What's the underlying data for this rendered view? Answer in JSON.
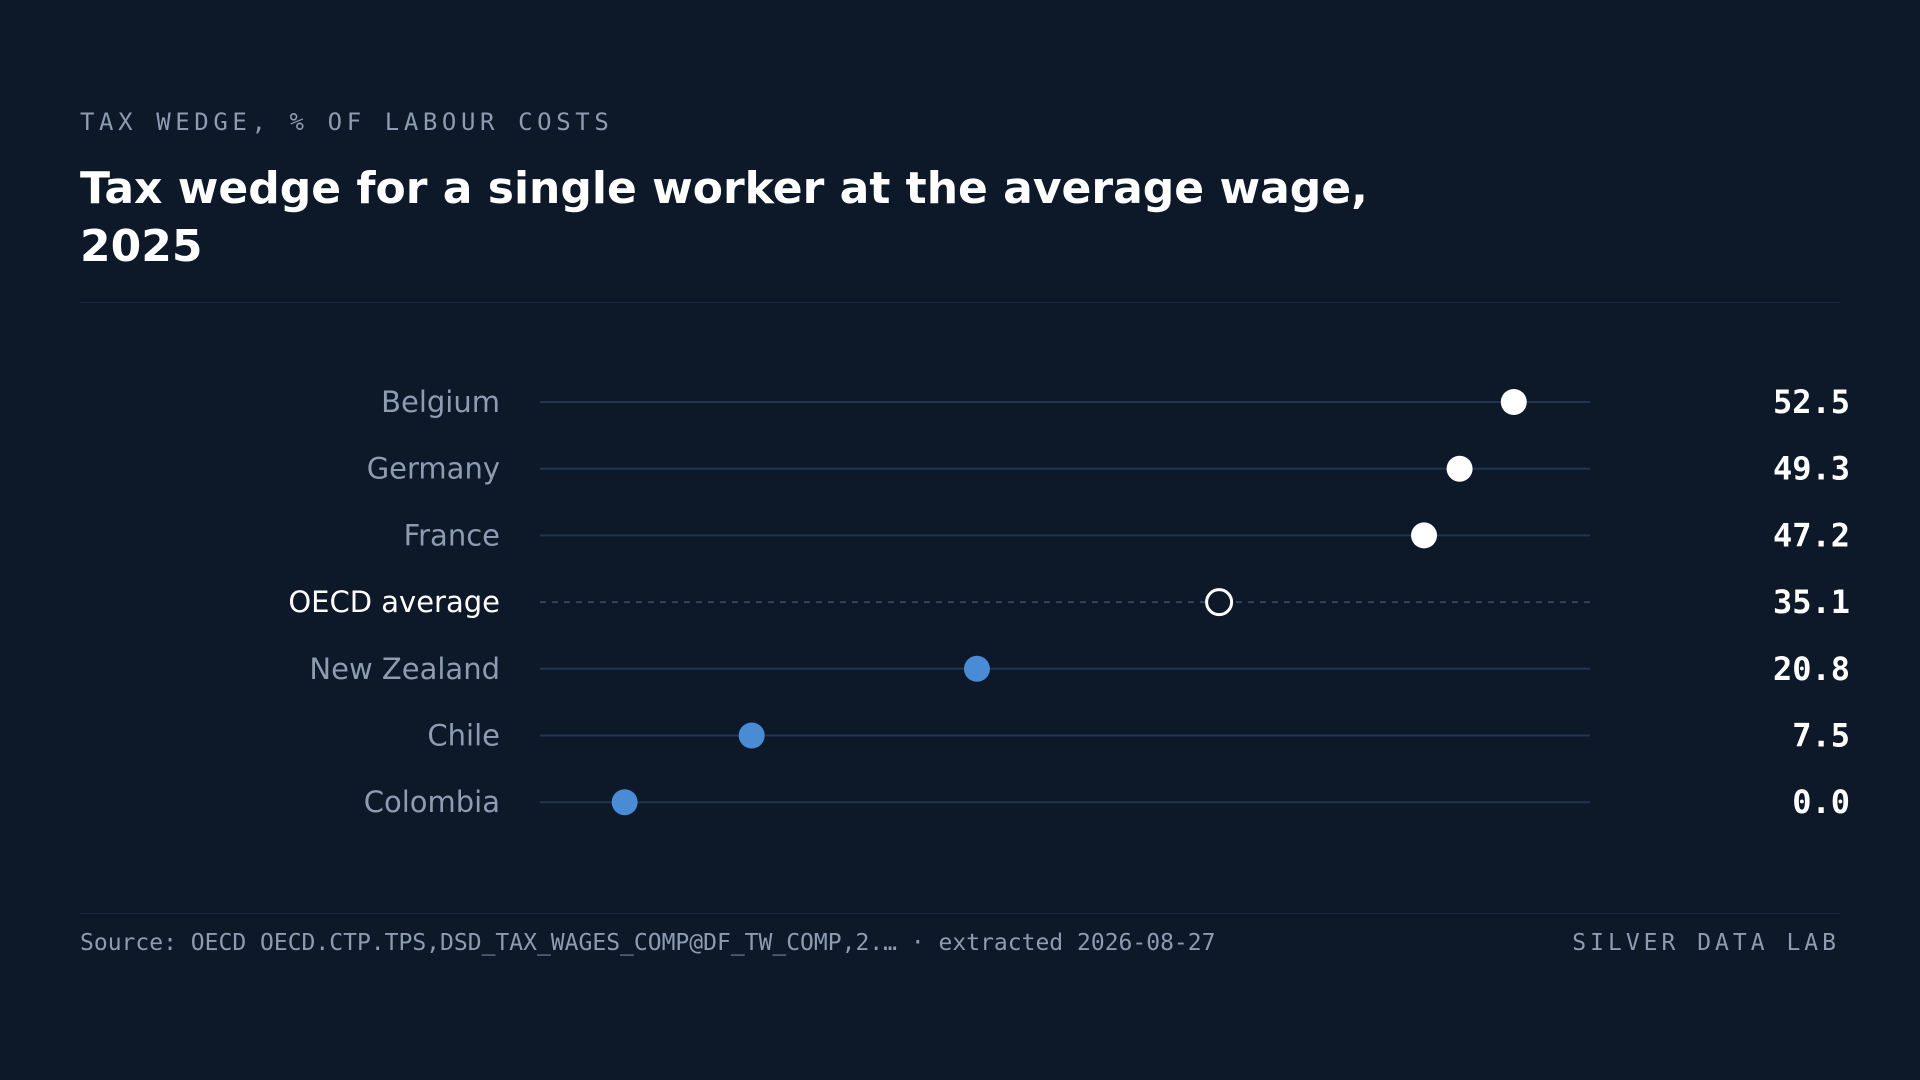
{
  "header": {
    "kicker": "TAX WEDGE, % OF LABOUR COSTS",
    "title": "Tax wedge for a single worker at the average wage, 2025"
  },
  "footer": {
    "source": "Source: OECD OECD.CTP.TPS,DSD_TAX_WAGES_COMP@DF_TW_COMP,2.… · extracted 2026-08-27",
    "brand": "SILVER DATA LAB"
  },
  "chart_data": {
    "type": "scatter",
    "subtype": "dot-plot",
    "title": "Tax wedge for a single worker at the average wage, 2025",
    "subtitle": "TAX WEDGE, % OF LABOUR COSTS",
    "xlabel": "",
    "ylabel": "",
    "xlim": [
      -5,
      57
    ],
    "grid": false,
    "legend": "none",
    "categories": [
      "Belgium",
      "Germany",
      "France",
      "OECD average",
      "New Zealand",
      "Chile",
      "Colombia"
    ],
    "values": [
      52.5,
      49.3,
      47.2,
      35.1,
      20.8,
      7.5,
      0.0
    ],
    "value_labels": [
      "52.5",
      "49.3",
      "47.2",
      "35.1",
      "20.8",
      "7.5",
      "0.0"
    ],
    "reference_category": "OECD average",
    "colors": {
      "above_average": "#ffffff",
      "average": "#ffffff",
      "below_average": "#4a8bd6",
      "track": "#1f3550",
      "label": "#8e9bb0",
      "reference_label": "#ffffff"
    }
  }
}
